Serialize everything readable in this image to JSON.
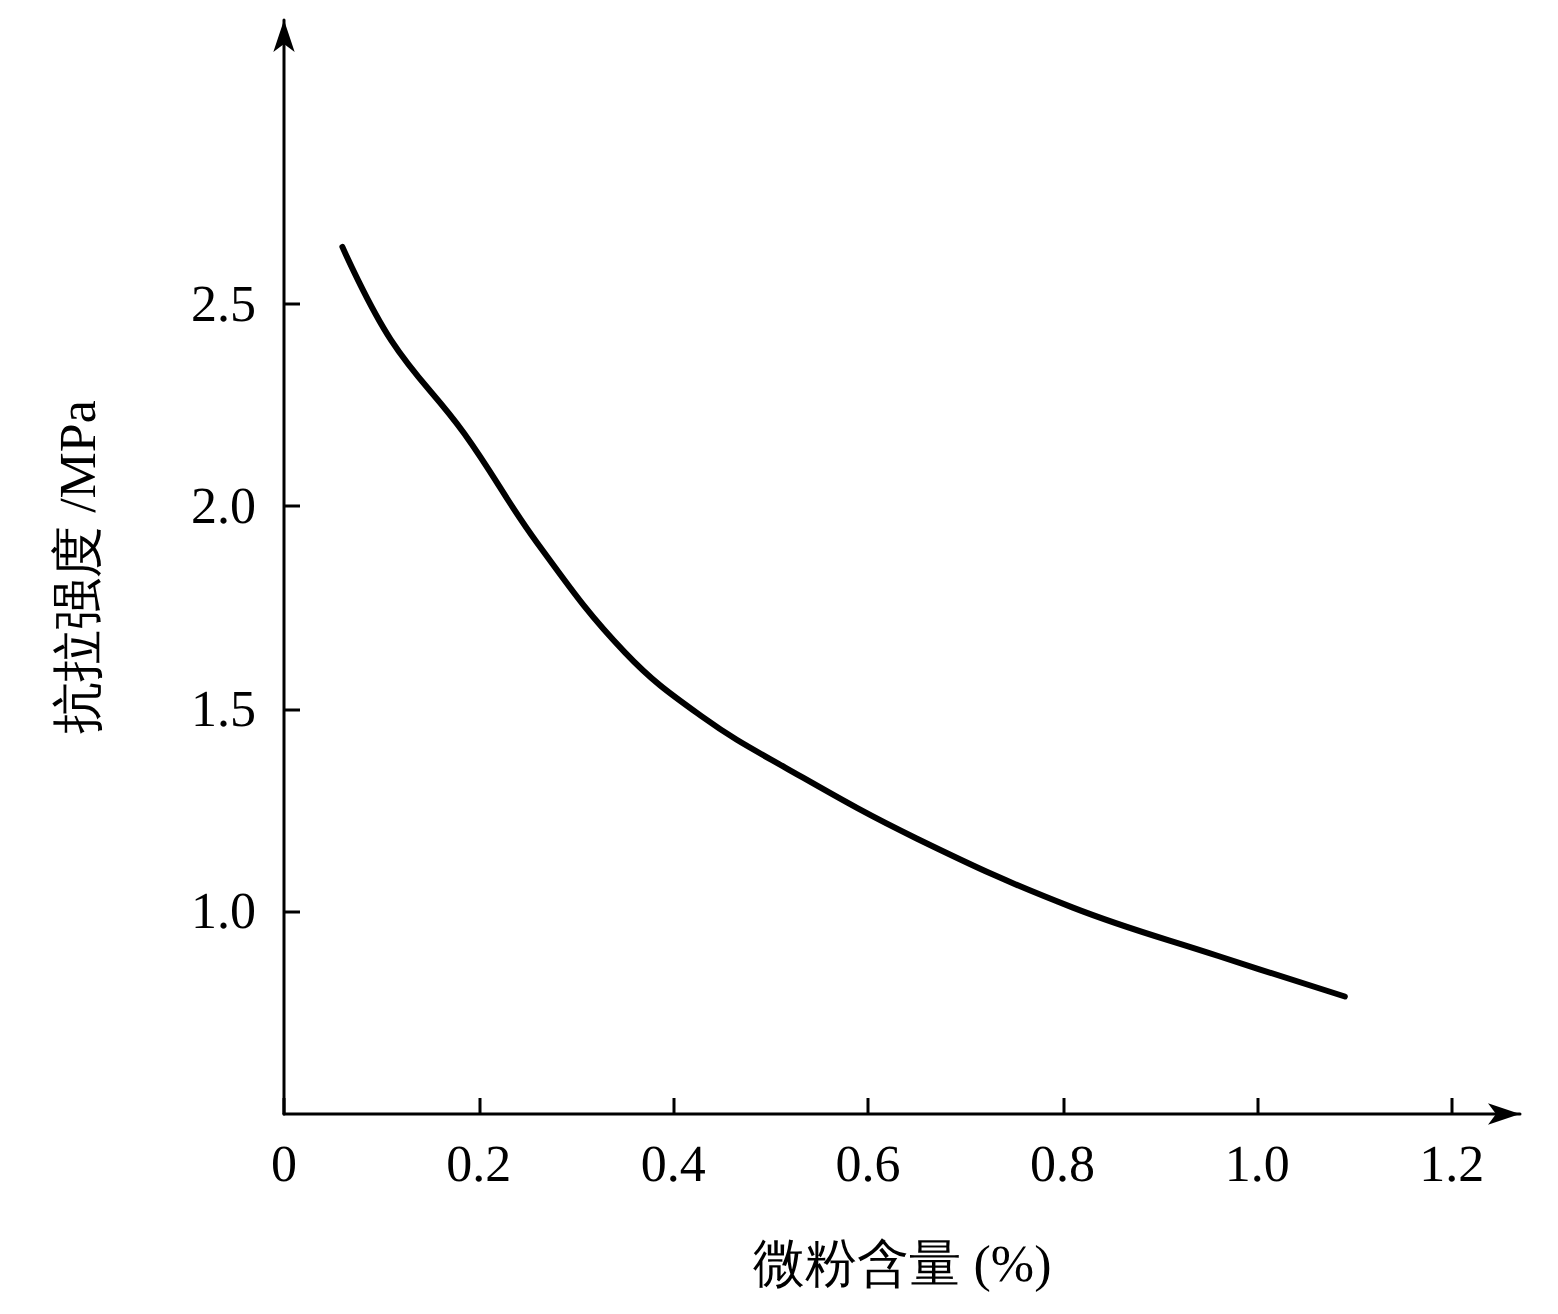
{
  "chart_data": {
    "type": "line",
    "xlabel": "微粉含量 (%)",
    "ylabel": "抗拉强度 /MPa",
    "x": [
      0.06,
      0.11,
      0.185,
      0.26,
      0.35,
      0.43,
      0.515,
      0.65,
      0.81,
      0.96,
      1.09
    ],
    "series": [
      {
        "color": "#000000",
        "values": [
          2.64,
          2.41,
          2.18,
          1.91,
          1.64,
          1.48,
          1.355,
          1.18,
          1.01,
          0.89,
          0.79
        ]
      }
    ],
    "xlim": [
      0,
      1.27
    ],
    "xticks": [
      0,
      0.2,
      0.4,
      0.6,
      0.8,
      {
        "value": 1,
        "label": "1.0"
      },
      1.2
    ],
    "ylim": [
      0.5,
      3.2
    ],
    "yticks": [
      {
        "value": 1,
        "label": "1.0"
      },
      1.5,
      {
        "value": 2,
        "label": "2.0"
      },
      2.5
    ],
    "grid": false,
    "marker": "none",
    "line_style": "solid"
  }
}
